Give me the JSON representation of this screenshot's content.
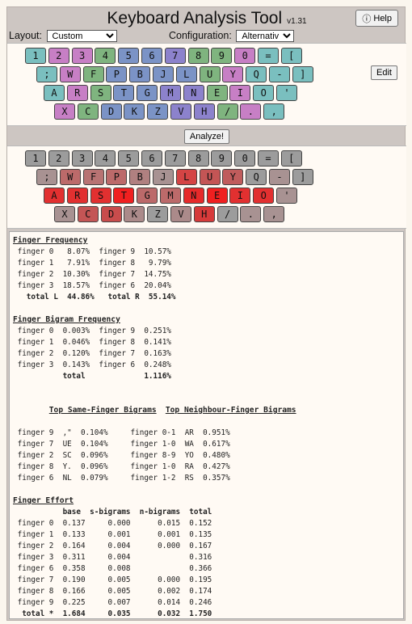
{
  "header": {
    "title": "Keyboard Analysis Tool",
    "version": "v1.31",
    "help_label": "Help"
  },
  "controls": {
    "layout_label": "Layout:",
    "layout_value": "Custom",
    "config_label": "Configuration:",
    "config_value": "Alternative",
    "edit_label": "Edit",
    "analyze_label": "Analyze!"
  },
  "colors": {
    "pink": "#c77fc5",
    "teal": "#7abfbf",
    "green": "#7fb47f",
    "blue": "#7b93c6",
    "purple": "#8c82cc",
    "gray": "#9c9c9c",
    "heat_light": "#ab8a8a",
    "heat_mid": "#c45555",
    "heat_red": "#e62a2a"
  },
  "keyboard_top": {
    "rows": [
      [
        {
          "label": "1",
          "color": "#7abfbf"
        },
        {
          "label": "2",
          "color": "#c77fc5"
        },
        {
          "label": "3",
          "color": "#c77fc5"
        },
        {
          "label": "4",
          "color": "#7fb47f"
        },
        {
          "label": "5",
          "color": "#7b93c6"
        },
        {
          "label": "6",
          "color": "#7b93c6"
        },
        {
          "label": "7",
          "color": "#8c82cc"
        },
        {
          "label": "8",
          "color": "#7fb47f"
        },
        {
          "label": "9",
          "color": "#7fb47f"
        },
        {
          "label": "0",
          "color": "#c77fc5"
        },
        {
          "label": "=",
          "color": "#7abfbf"
        },
        {
          "label": "[",
          "color": "#7abfbf"
        }
      ],
      [
        {
          "label": ";",
          "color": "#7abfbf"
        },
        {
          "label": "W",
          "color": "#c77fc5"
        },
        {
          "label": "F",
          "color": "#7fb47f"
        },
        {
          "label": "P",
          "color": "#7b93c6"
        },
        {
          "label": "B",
          "color": "#7b93c6"
        },
        {
          "label": "J",
          "color": "#7b93c6"
        },
        {
          "label": "L",
          "color": "#7b93c6"
        },
        {
          "label": "U",
          "color": "#7fb47f"
        },
        {
          "label": "Y",
          "color": "#c77fc5"
        },
        {
          "label": "Q",
          "color": "#7abfbf"
        },
        {
          "label": "-",
          "color": "#7abfbf"
        },
        {
          "label": "]",
          "color": "#7abfbf"
        }
      ],
      [
        {
          "label": "A",
          "color": "#7abfbf"
        },
        {
          "label": "R",
          "color": "#c77fc5"
        },
        {
          "label": "S",
          "color": "#7fb47f"
        },
        {
          "label": "T",
          "color": "#7b93c6"
        },
        {
          "label": "G",
          "color": "#7b93c6"
        },
        {
          "label": "M",
          "color": "#8c82cc"
        },
        {
          "label": "N",
          "color": "#8c82cc"
        },
        {
          "label": "E",
          "color": "#7fb47f"
        },
        {
          "label": "I",
          "color": "#c77fc5"
        },
        {
          "label": "O",
          "color": "#7abfbf"
        },
        {
          "label": "'",
          "color": "#7abfbf"
        }
      ],
      [
        {
          "label": "X",
          "color": "#c77fc5"
        },
        {
          "label": "C",
          "color": "#7fb47f"
        },
        {
          "label": "D",
          "color": "#7b93c6"
        },
        {
          "label": "K",
          "color": "#7b93c6"
        },
        {
          "label": "Z",
          "color": "#7b93c6"
        },
        {
          "label": "V",
          "color": "#8c82cc"
        },
        {
          "label": "H",
          "color": "#8c82cc"
        },
        {
          "label": "/",
          "color": "#7fb47f"
        },
        {
          "label": ".",
          "color": "#c77fc5"
        },
        {
          "label": ",",
          "color": "#7abfbf"
        }
      ]
    ]
  },
  "keyboard_heat": {
    "rows": [
      [
        {
          "label": "1",
          "color": "#9c9c9c"
        },
        {
          "label": "2",
          "color": "#9c9c9c"
        },
        {
          "label": "3",
          "color": "#9c9c9c"
        },
        {
          "label": "4",
          "color": "#9c9c9c"
        },
        {
          "label": "5",
          "color": "#9c9c9c"
        },
        {
          "label": "6",
          "color": "#9c9c9c"
        },
        {
          "label": "7",
          "color": "#9c9c9c"
        },
        {
          "label": "8",
          "color": "#9c9c9c"
        },
        {
          "label": "9",
          "color": "#9c9c9c"
        },
        {
          "label": "0",
          "color": "#9c9c9c"
        },
        {
          "label": "=",
          "color": "#9c9c9c"
        },
        {
          "label": "[",
          "color": "#9c9c9c"
        }
      ],
      [
        {
          "label": ";",
          "color": "#a89292"
        },
        {
          "label": "W",
          "color": "#bc6a6a"
        },
        {
          "label": "F",
          "color": "#b87373"
        },
        {
          "label": "P",
          "color": "#bc6a6a"
        },
        {
          "label": "B",
          "color": "#b08080"
        },
        {
          "label": "J",
          "color": "#a89292"
        },
        {
          "label": "L",
          "color": "#d44444"
        },
        {
          "label": "U",
          "color": "#c45555"
        },
        {
          "label": "Y",
          "color": "#c05c5c"
        },
        {
          "label": "Q",
          "color": "#9c9c9c"
        },
        {
          "label": "-",
          "color": "#a89292"
        },
        {
          "label": "]",
          "color": "#9c9c9c"
        }
      ],
      [
        {
          "label": "A",
          "color": "#e23030"
        },
        {
          "label": "R",
          "color": "#e23030"
        },
        {
          "label": "S",
          "color": "#e23030"
        },
        {
          "label": "T",
          "color": "#f02020"
        },
        {
          "label": "G",
          "color": "#bc6a6a"
        },
        {
          "label": "M",
          "color": "#bc6a6a"
        },
        {
          "label": "N",
          "color": "#e62a2a"
        },
        {
          "label": "E",
          "color": "#f02020"
        },
        {
          "label": "I",
          "color": "#e23030"
        },
        {
          "label": "O",
          "color": "#e23030"
        },
        {
          "label": "'",
          "color": "#a89292"
        }
      ],
      [
        {
          "label": "X",
          "color": "#a89292"
        },
        {
          "label": "C",
          "color": "#c45555"
        },
        {
          "label": "D",
          "color": "#c84c4c"
        },
        {
          "label": "K",
          "color": "#ab8a8a"
        },
        {
          "label": "Z",
          "color": "#9c9c9c"
        },
        {
          "label": "V",
          "color": "#ab8a8a"
        },
        {
          "label": "H",
          "color": "#d63a3a"
        },
        {
          "label": "/",
          "color": "#9c9c9c"
        },
        {
          "label": ".",
          "color": "#a89292"
        },
        {
          "label": ",",
          "color": "#a89292"
        }
      ]
    ]
  },
  "stats": {
    "finger_frequency": {
      "title": "Finger Frequency",
      "body": " finger 0   8.07%  finger 9  10.57%\n finger 1   7.91%  finger 8   9.79%\n finger 2  10.30%  finger 7  14.75%\n finger 3  18.57%  finger 6  20.04%",
      "total": "   total L  44.86%   total R  55.14%"
    },
    "finger_bigram": {
      "title": "Finger Bigram Frequency",
      "body": " finger 0  0.003%  finger 9  0.251%\n finger 1  0.046%  finger 8  0.141%\n finger 2  0.120%  finger 7  0.163%\n finger 3  0.143%  finger 6  0.248%",
      "total": "           total             1.116%"
    },
    "top_bigrams": {
      "title_same": "Top Same-Finger Bigrams",
      "title_neighbour": "Top Neighbour-Finger Bigrams",
      "body": " finger 9  ,\"  0.104%     finger 0-1  AR  0.951%\n finger 7  UE  0.104%     finger 1-0  WA  0.617%\n finger 2  SC  0.096%     finger 8-9  YO  0.480%\n finger 8  Y.  0.096%     finger 1-0  RA  0.427%\n finger 6  NL  0.079%     finger 1-2  RS  0.357%"
    },
    "finger_effort": {
      "title": "Finger Effort",
      "header": "           base  s-bigrams  n-bigrams  total",
      "body": " finger 0  0.137     0.000      0.015  0.152\n finger 1  0.133     0.001      0.001  0.135\n finger 2  0.164     0.004      0.000  0.167\n finger 3  0.311     0.004             0.316\n finger 6  0.358     0.008             0.366\n finger 7  0.190     0.005      0.000  0.195\n finger 8  0.166     0.005      0.002  0.174\n finger 9  0.225     0.007      0.014  0.246",
      "total": "  total *  1.684     0.035      0.032  1.750"
    }
  }
}
